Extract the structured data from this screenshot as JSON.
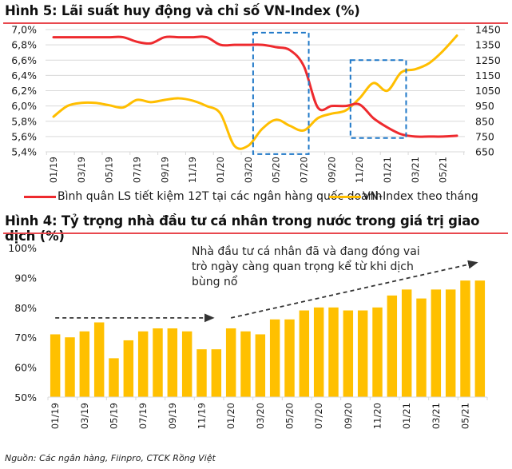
{
  "colors": {
    "rate": "#ee2a2e",
    "vnindex": "#ffbe00",
    "bar": "#ffc000",
    "highlight": "#1f78c8",
    "rule": "#e8484e",
    "grid": "#d9d9d9",
    "arrow": "#333333"
  },
  "chart_data": [
    {
      "type": "line",
      "title": "Hình 5: Lãi suất huy động và chỉ số VN-Index (%)",
      "x": [
        "01/19",
        "02/19",
        "03/19",
        "04/19",
        "05/19",
        "06/19",
        "07/19",
        "08/19",
        "09/19",
        "10/19",
        "11/19",
        "12/19",
        "01/20",
        "02/20",
        "03/20",
        "04/20",
        "05/20",
        "06/20",
        "07/20",
        "08/20",
        "09/20",
        "10/20",
        "11/20",
        "12/20",
        "01/21",
        "02/21",
        "03/21",
        "04/21",
        "05/21",
        "06/21"
      ],
      "x_tick_labels": [
        "01/19",
        "03/19",
        "05/19",
        "07/19",
        "09/19",
        "11/19",
        "01/20",
        "03/20",
        "05/20",
        "07/20",
        "09/20",
        "11/20",
        "01/21",
        "03/21",
        "05/21"
      ],
      "y_left": {
        "ticks": [
          "7,0%",
          "6,8%",
          "6,6%",
          "6,4%",
          "6,2%",
          "6,0%",
          "5,8%",
          "5,6%",
          "5,4%"
        ],
        "range": [
          5.4,
          7.0
        ]
      },
      "y_right": {
        "ticks": [
          "1450",
          "1350",
          "1250",
          "1150",
          "1050",
          "950",
          "850",
          "750",
          "650"
        ],
        "range": [
          650,
          1450
        ]
      },
      "grid": true,
      "legend_position": "bottom",
      "series": [
        {
          "name": "Bình quân LS tiết kiệm 12T tại các ngân hàng quốc doanh",
          "axis": "left",
          "values": [
            6.9,
            6.9,
            6.9,
            6.9,
            6.9,
            6.9,
            6.84,
            6.82,
            6.9,
            6.9,
            6.9,
            6.9,
            6.8,
            6.8,
            6.8,
            6.8,
            6.77,
            6.73,
            6.52,
            5.98,
            6.0,
            6.0,
            6.02,
            5.84,
            5.72,
            5.63,
            5.6,
            5.6,
            5.6,
            5.61
          ]
        },
        {
          "name": "VN-Index theo tháng",
          "axis": "right",
          "values": [
            880,
            950,
            970,
            970,
            955,
            940,
            990,
            975,
            990,
            1000,
            985,
            950,
            900,
            690,
            690,
            800,
            860,
            820,
            790,
            870,
            900,
            920,
            1000,
            1100,
            1050,
            1170,
            1190,
            1230,
            1310,
            1410
          ]
        }
      ],
      "annotations": [
        {
          "type": "dashed-box",
          "from": "03/20",
          "to": "07/20",
          "y_range_left": [
            5.37,
            6.96
          ]
        },
        {
          "type": "dashed-box",
          "from": "10/20",
          "to": "02/21",
          "y_range_left": [
            5.58,
            6.6
          ]
        }
      ]
    },
    {
      "type": "bar",
      "title": "Hình 4: Tỷ trọng nhà đầu tư cá nhân trong nước trong giá trị giao dịch (%)",
      "categories": [
        "01/19",
        "02/19",
        "03/19",
        "04/19",
        "05/19",
        "06/19",
        "07/19",
        "08/19",
        "09/19",
        "10/19",
        "11/19",
        "12/19",
        "01/20",
        "02/20",
        "03/20",
        "04/20",
        "05/20",
        "06/20",
        "07/20",
        "08/20",
        "09/20",
        "10/20",
        "11/20",
        "12/20",
        "01/21",
        "02/21",
        "03/21",
        "04/21",
        "05/21",
        "06/21"
      ],
      "x_tick_labels": [
        "01/19",
        "03/19",
        "05/19",
        "07/19",
        "09/19",
        "11/19",
        "01/20",
        "03/20",
        "05/20",
        "07/20",
        "09/20",
        "11/20",
        "01/21",
        "03/21",
        "05/21"
      ],
      "values": [
        71,
        70,
        72,
        75,
        63,
        69,
        72,
        73,
        73,
        72,
        66,
        66,
        73,
        72,
        71,
        76,
        76,
        79,
        80,
        80,
        79,
        79,
        80,
        84,
        86,
        83,
        86,
        86,
        89,
        89
      ],
      "y_ticks": [
        "100%",
        "90%",
        "80%",
        "70%",
        "60%",
        "50%"
      ],
      "ylim": [
        50,
        100
      ],
      "grid": false,
      "annotations": [
        {
          "type": "dashed-arrow",
          "from": {
            "x": "01/19",
            "y": 76.5
          },
          "to": {
            "x": "12/19",
            "y": 76.5
          }
        },
        {
          "type": "dashed-arrow",
          "from": {
            "x": "01/20",
            "y": 76.5
          },
          "to": {
            "x": "06/21",
            "y": 95
          }
        }
      ],
      "note": "Nhà đầu tư cá nhân đã và đang đóng vai trò ngày càng quan trọng kể từ khi dịch bùng nổ"
    }
  ],
  "source": "Nguồn: Các ngân hàng, Fiinpro, CTCK Rồng Việt"
}
